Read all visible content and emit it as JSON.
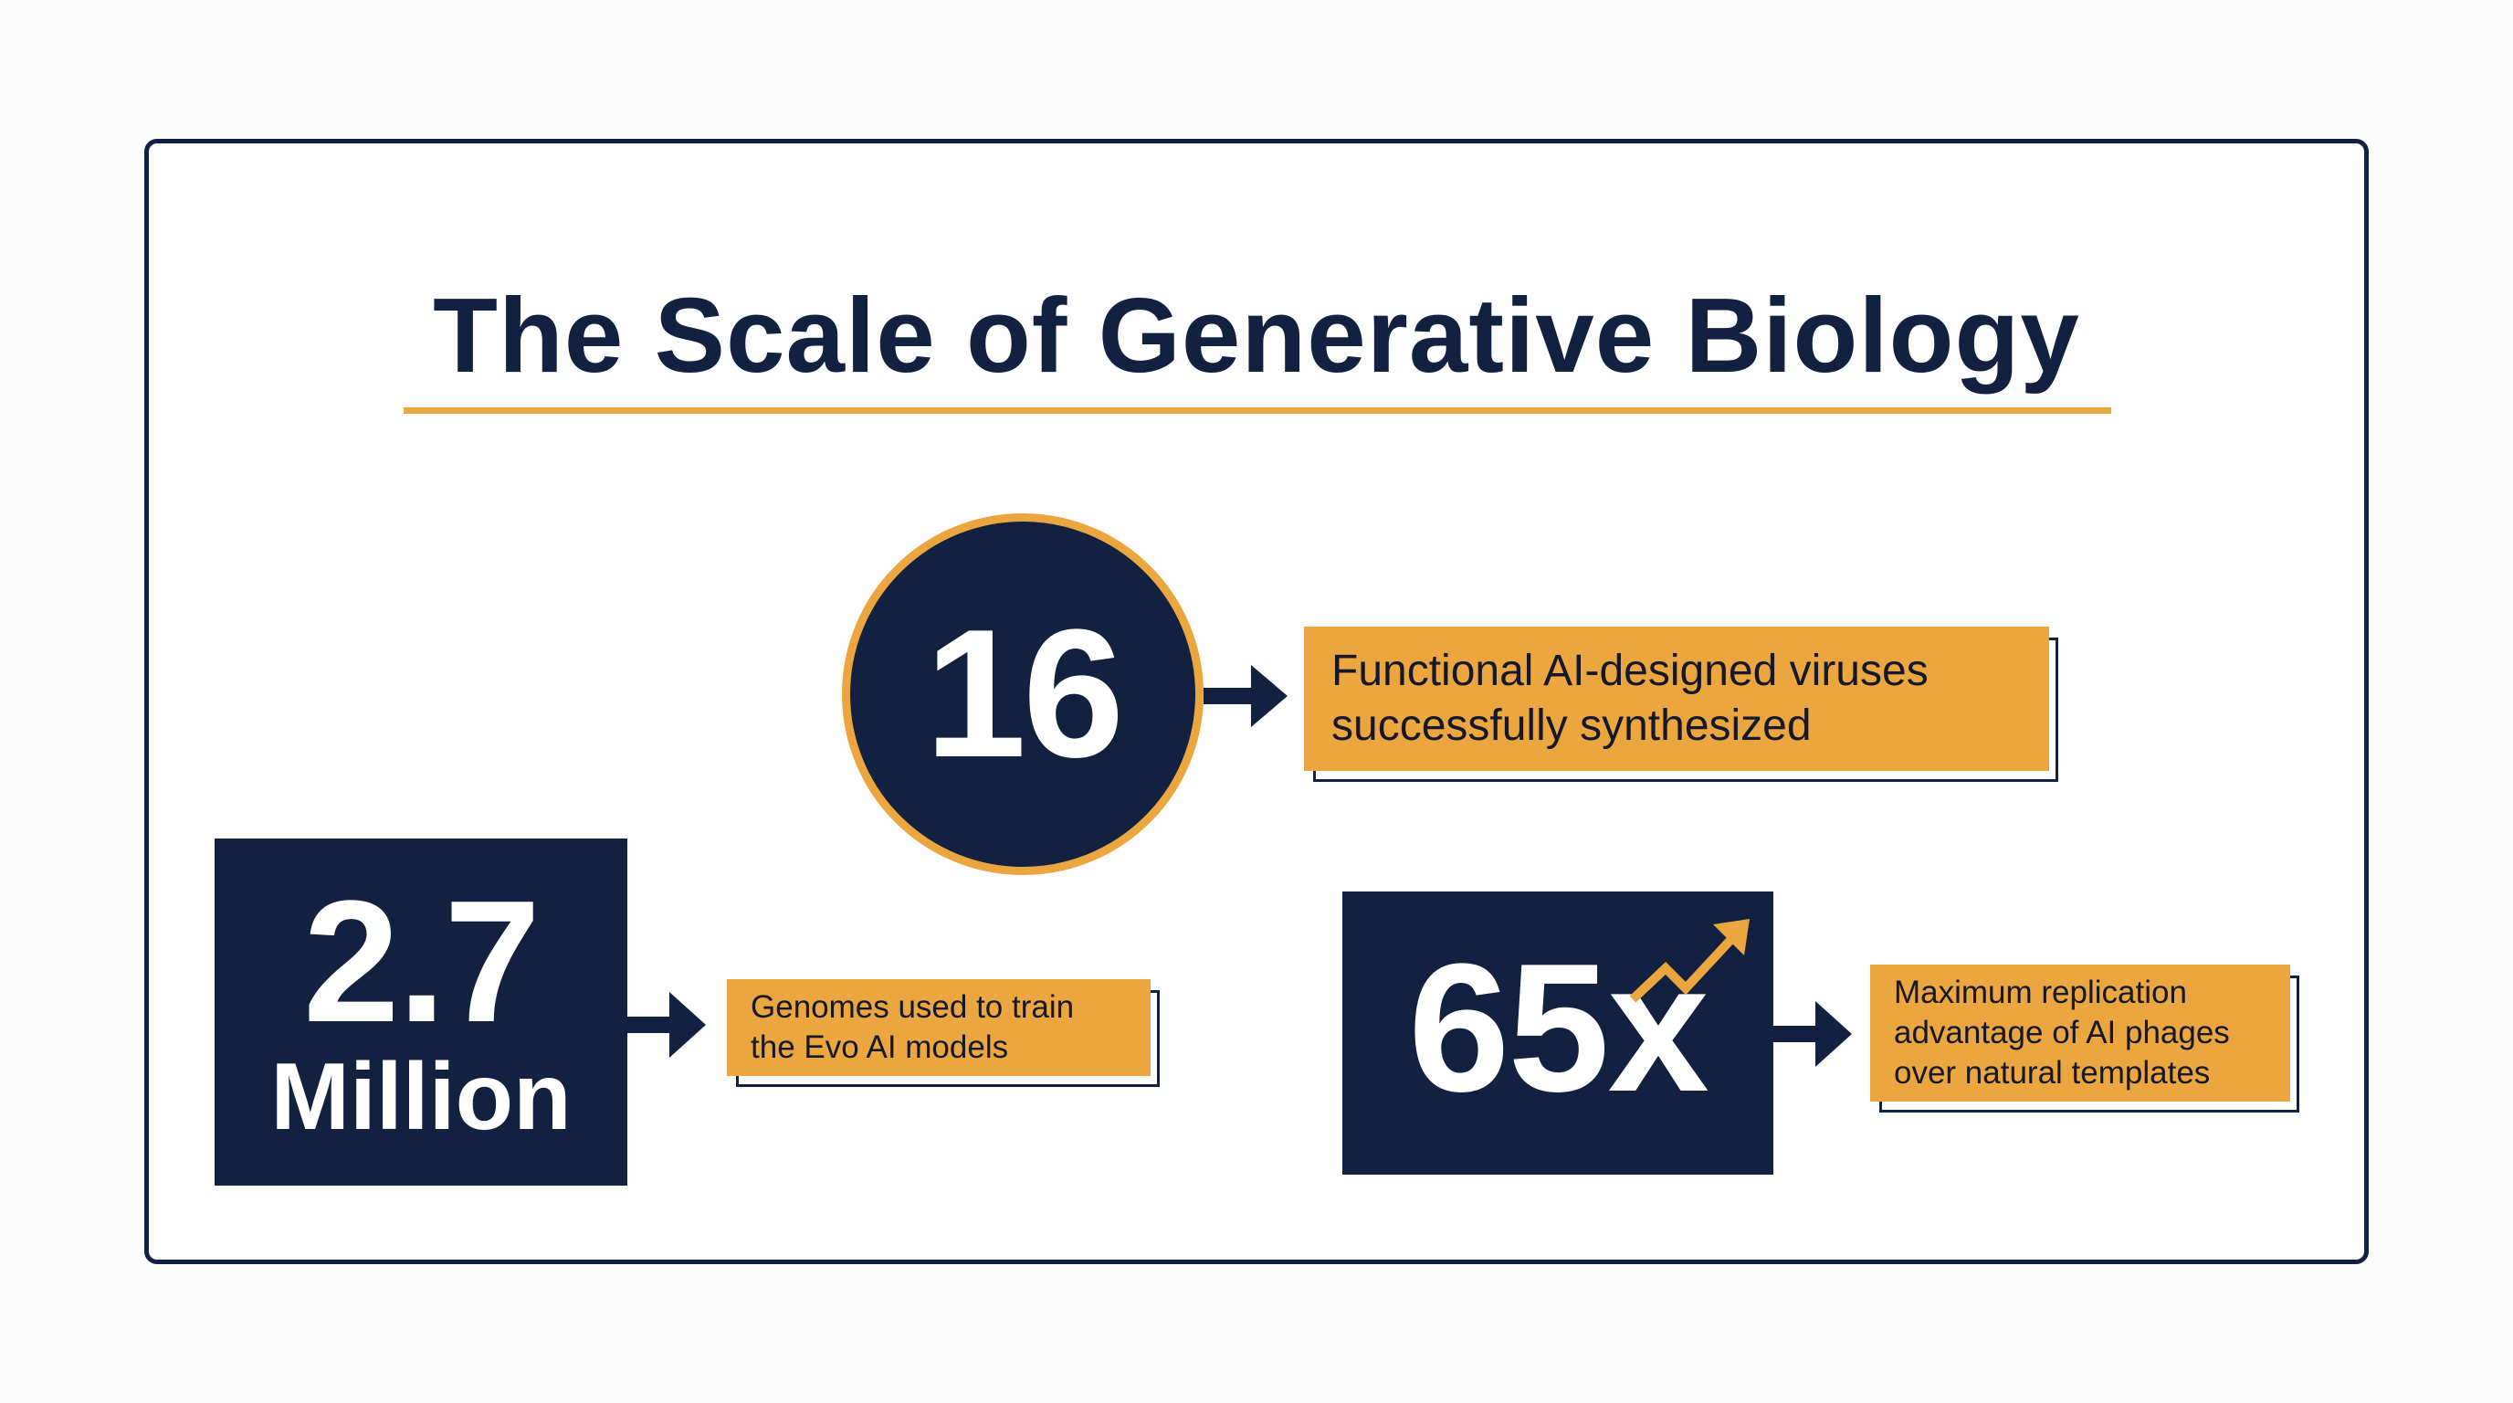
{
  "title": "The Scale of Generative Biology",
  "colors": {
    "navy": "#12213f",
    "accent": "#eba640",
    "background": "#fcfcfd"
  },
  "stats": {
    "viruses": {
      "value": "16",
      "label_lines": [
        "Functional AI-designed viruses",
        "successfully synthesized"
      ]
    },
    "genomes": {
      "value": "2.7",
      "unit": "Million",
      "label_lines": [
        "Genomes used to train",
        "the Evo AI models"
      ]
    },
    "advantage": {
      "value": "65x",
      "icon": "trend-up-icon",
      "label_lines": [
        "Maximum replication",
        "advantage of AI phages",
        "over natural templates"
      ]
    }
  }
}
